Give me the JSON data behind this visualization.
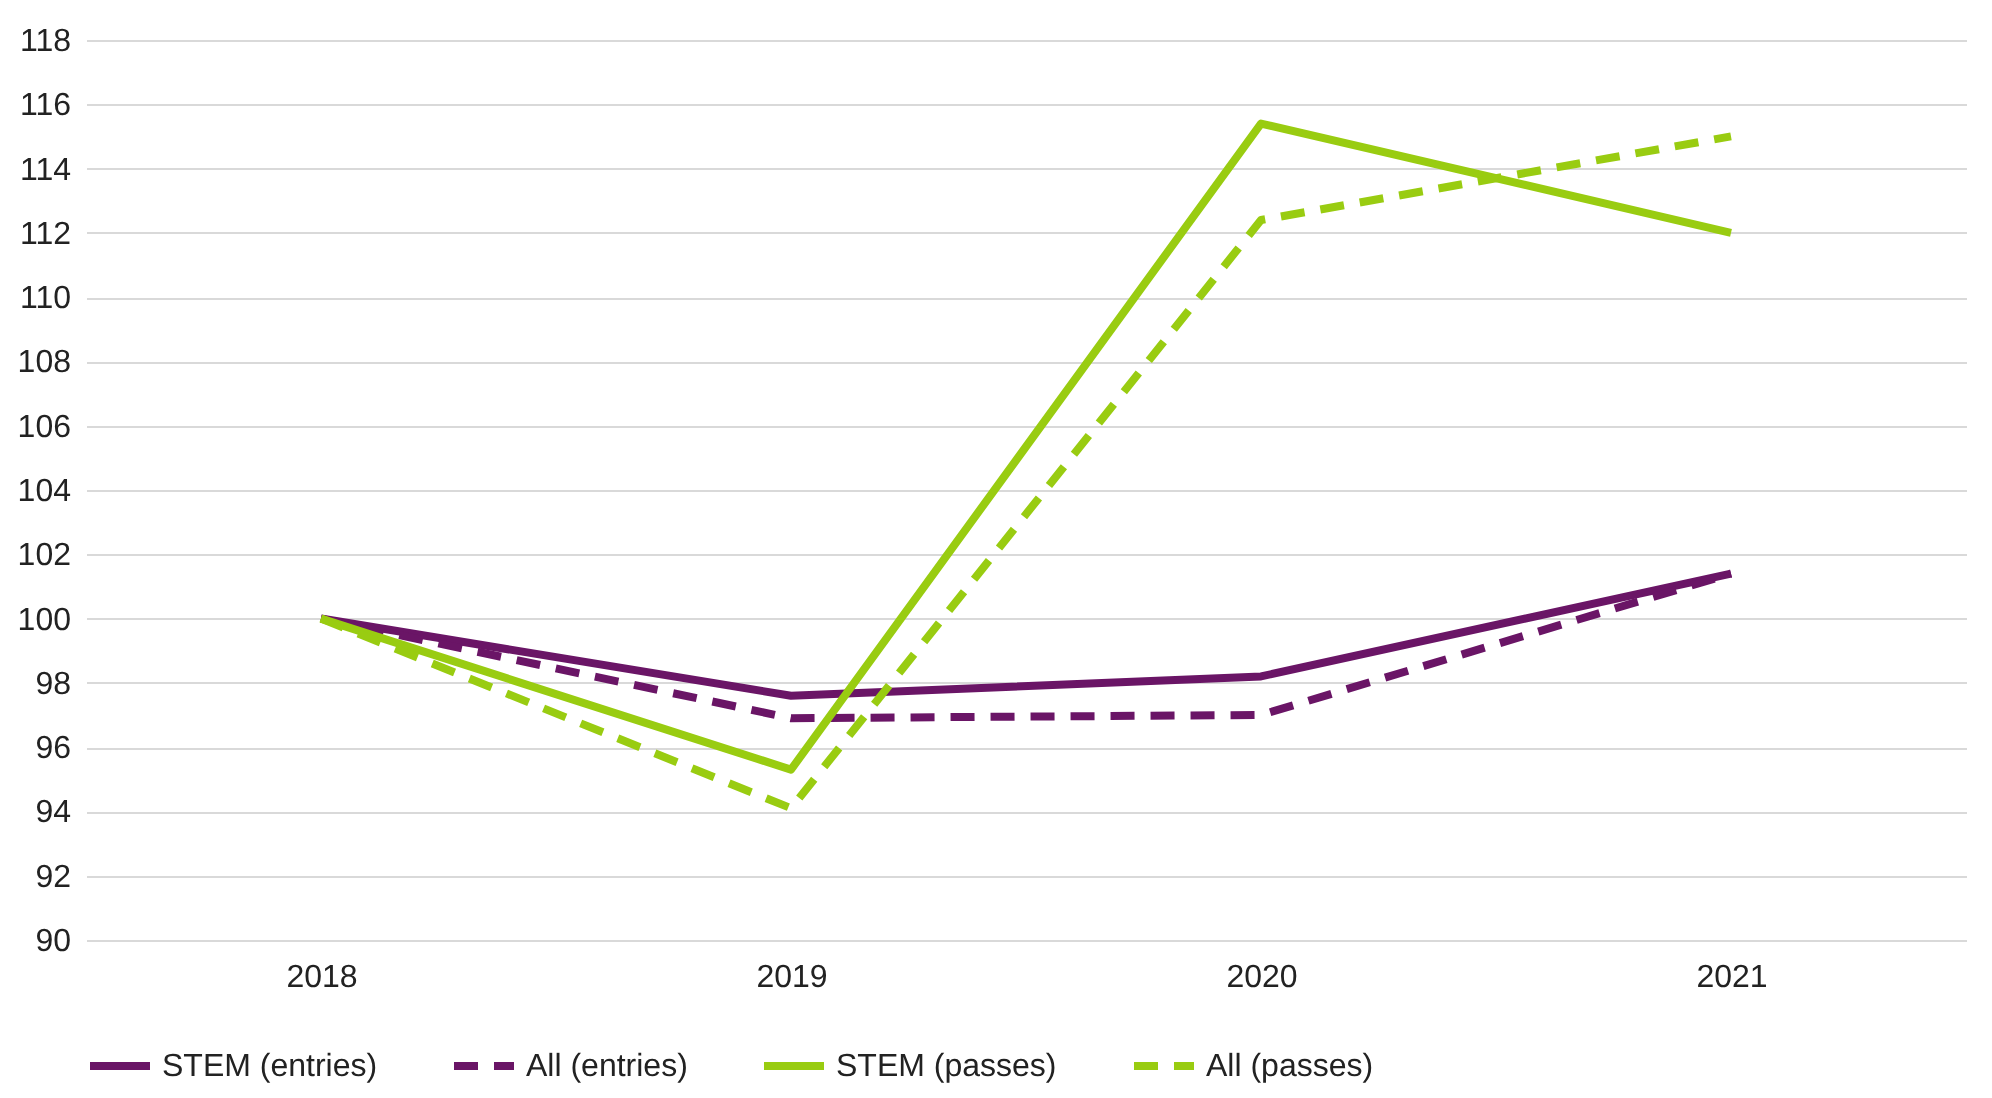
{
  "chart_data": {
    "type": "line",
    "categories": [
      "2018",
      "2019",
      "2020",
      "2021"
    ],
    "ylim": [
      90,
      118
    ],
    "yticks": [
      90,
      92,
      94,
      96,
      98,
      100,
      102,
      104,
      106,
      108,
      110,
      112,
      114,
      116,
      118
    ],
    "grid": "y",
    "legend": "bottom",
    "marker": "none",
    "series": [
      {
        "name": "STEM (entries)",
        "color": "#6a1566",
        "line_style": "solid",
        "values": [
          100,
          97.6,
          98.2,
          101.4
        ]
      },
      {
        "name": "All (entries)",
        "color": "#6a1566",
        "line_style": "dashed",
        "values": [
          100,
          96.9,
          97.0,
          101.4
        ]
      },
      {
        "name": "STEM (passes)",
        "color": "#99cc11",
        "line_style": "solid",
        "values": [
          100,
          95.3,
          115.4,
          112.0
        ]
      },
      {
        "name": "All (passes)",
        "color": "#99cc11",
        "line_style": "dashed",
        "values": [
          100,
          94.1,
          112.4,
          115.0
        ]
      }
    ]
  }
}
